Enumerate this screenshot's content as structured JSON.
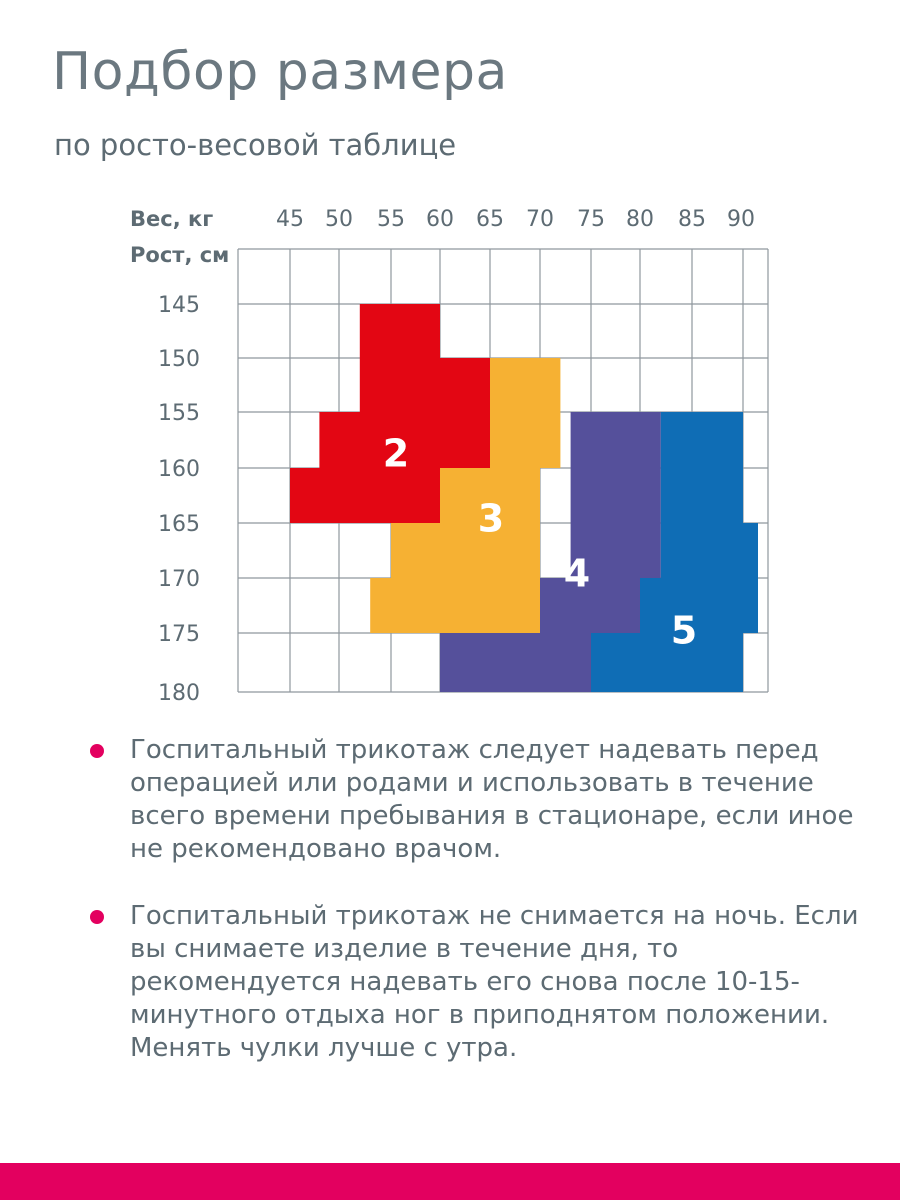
{
  "title": "Подбор размера",
  "subtitle": "по росто-весовой таблице",
  "chart_data": {
    "type": "table",
    "x_axis_label": "Вес, кг",
    "y_axis_label": "Рост, см",
    "x_ticks": [
      "45",
      "50",
      "55",
      "60",
      "65",
      "70",
      "75",
      "80",
      "85",
      "90"
    ],
    "y_ticks": [
      "145",
      "150",
      "155",
      "160",
      "165",
      "170",
      "175",
      "180"
    ],
    "zones": [
      {
        "label": "2",
        "color": "#e30613",
        "polygon": [
          [
            60,
            145
          ],
          [
            60,
            150
          ],
          [
            65,
            150
          ],
          [
            65,
            165
          ],
          [
            60,
            165
          ],
          [
            60,
            170
          ],
          [
            55,
            170
          ],
          [
            55,
            165
          ],
          [
            45,
            165
          ],
          [
            45,
            160
          ],
          [
            48,
            160
          ],
          [
            48,
            155
          ],
          [
            52,
            155
          ],
          [
            52,
            145
          ]
        ]
      },
      {
        "label": "3",
        "color": "#f6b133",
        "polygon": [
          [
            65,
            150
          ],
          [
            72,
            150
          ],
          [
            72,
            160
          ],
          [
            70,
            160
          ],
          [
            70,
            175
          ],
          [
            53,
            175
          ],
          [
            53,
            170
          ],
          [
            55,
            170
          ],
          [
            55,
            165
          ],
          [
            60,
            165
          ],
          [
            60,
            160
          ],
          [
            65,
            160
          ]
        ]
      },
      {
        "label": "4",
        "color": "#55509b",
        "polygon": [
          [
            73,
            155
          ],
          [
            82,
            155
          ],
          [
            82,
            170
          ],
          [
            80,
            170
          ],
          [
            80,
            175
          ],
          [
            75,
            175
          ],
          [
            75,
            180
          ],
          [
            60,
            180
          ],
          [
            60,
            175
          ],
          [
            70,
            175
          ],
          [
            70,
            170
          ],
          [
            73,
            170
          ]
        ]
      },
      {
        "label": "5",
        "color": "#0f6db5",
        "polygon": [
          [
            82,
            155
          ],
          [
            90,
            155
          ],
          [
            90,
            165
          ],
          [
            93,
            165
          ],
          [
            93,
            175
          ],
          [
            90,
            175
          ],
          [
            90,
            180
          ],
          [
            75,
            180
          ],
          [
            75,
            175
          ],
          [
            80,
            175
          ],
          [
            80,
            170
          ],
          [
            82,
            170
          ]
        ]
      }
    ]
  },
  "notes": [
    "Госпитальный трикотаж следует надевать перед операцией или родами и использовать в течение всего времени пребывания в стационаре, если иное не рекомендовано врачом.",
    "Госпитальный трикотаж не снимается на ночь. Если вы снимаете изделие в течение дня, то рекомендуется надевать его снова после 10-15-минутного отдыха ног в приподнятом положении. Менять чулки лучше с утра."
  ],
  "colors": {
    "accent": "#e3005f",
    "grid": "#8f989e",
    "text": "#5d6b73"
  }
}
